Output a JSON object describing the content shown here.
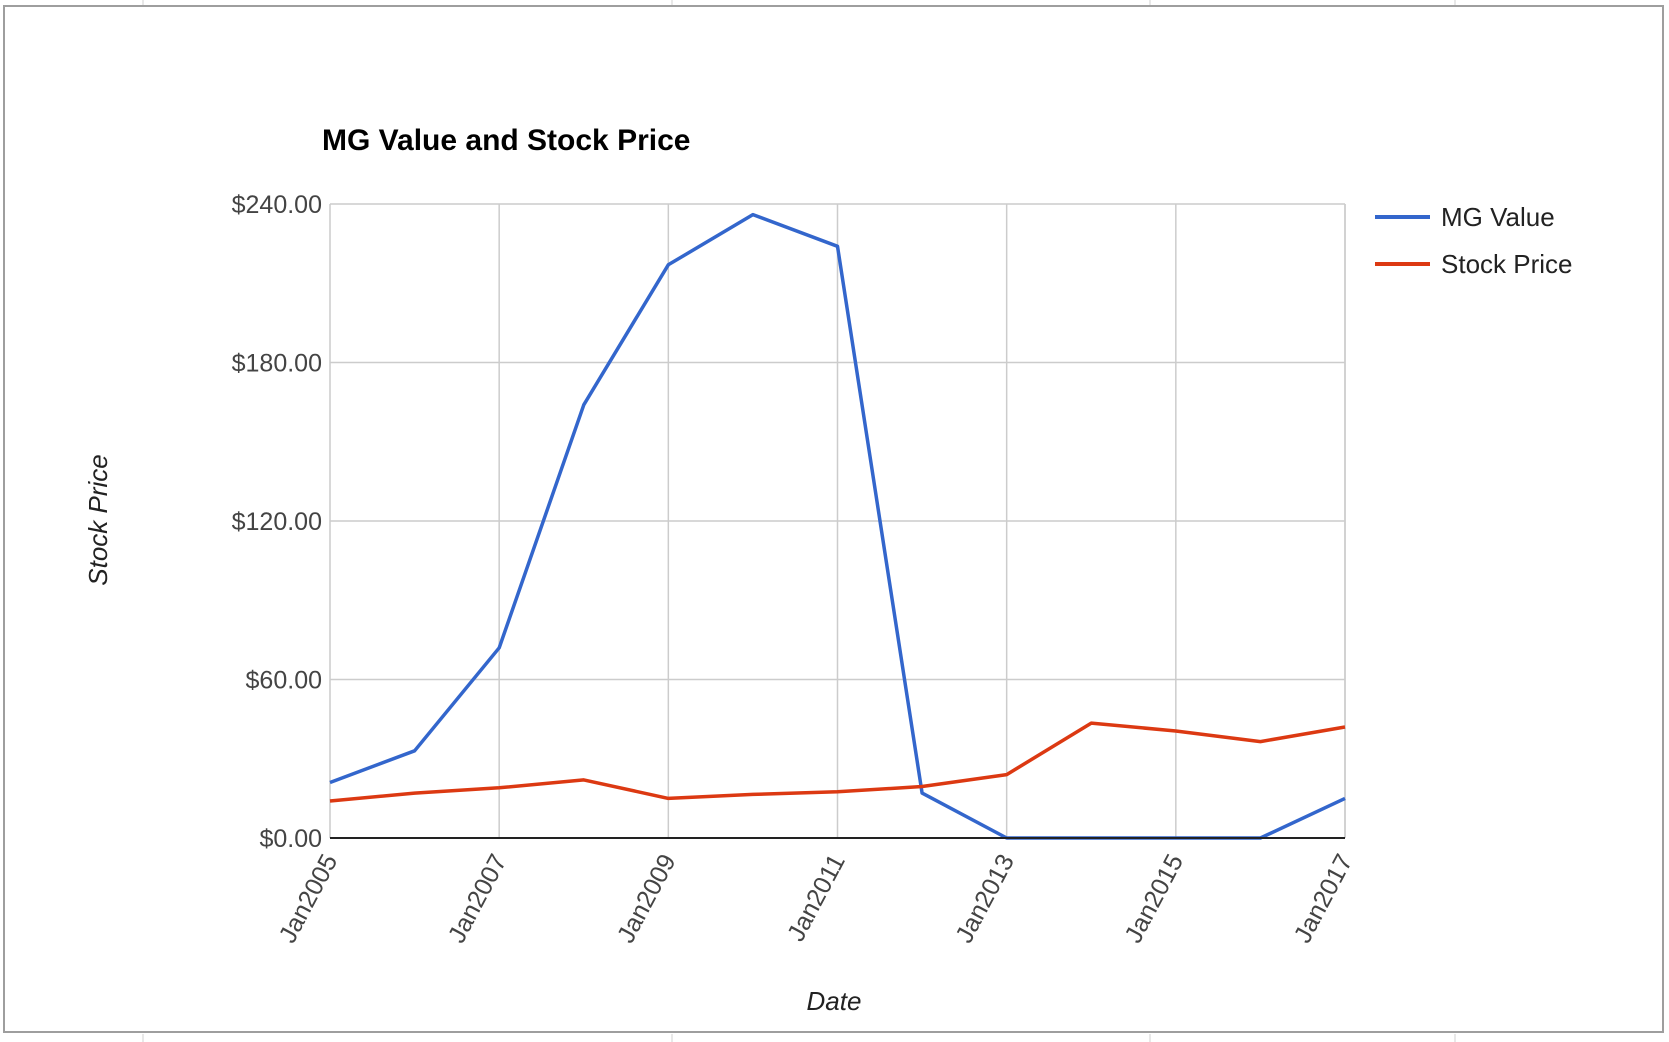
{
  "chart_data": {
    "type": "line",
    "title": "MG Value and Stock Price",
    "xlabel": "Date",
    "ylabel": "Stock Price",
    "x": [
      "Jan2005",
      "Jan2006",
      "Jan2007",
      "Jan2008",
      "Jan2009",
      "Jan2010",
      "Jan2011",
      "Jan2012",
      "Jan2013",
      "Jan2014",
      "Jan2015",
      "Jan2016",
      "Jan2017"
    ],
    "x_tick_labels": [
      "Jan2005",
      "Jan2007",
      "Jan2009",
      "Jan2011",
      "Jan2013",
      "Jan2015",
      "Jan2017"
    ],
    "y_tick_labels": [
      "$0.00",
      "$60.00",
      "$120.00",
      "$180.00",
      "$240.00"
    ],
    "ylim": [
      0,
      240
    ],
    "grid": true,
    "legend_position": "right",
    "series": [
      {
        "name": "MG Value",
        "color": "#3366cc",
        "values": [
          21,
          33,
          72,
          164,
          217,
          236,
          224,
          17,
          0,
          0,
          0,
          0,
          15
        ]
      },
      {
        "name": "Stock Price",
        "color": "#dc3912",
        "values": [
          14,
          17,
          19,
          22,
          15,
          16.5,
          17.5,
          19.5,
          24,
          43.5,
          40.5,
          36.5,
          42
        ]
      }
    ]
  }
}
